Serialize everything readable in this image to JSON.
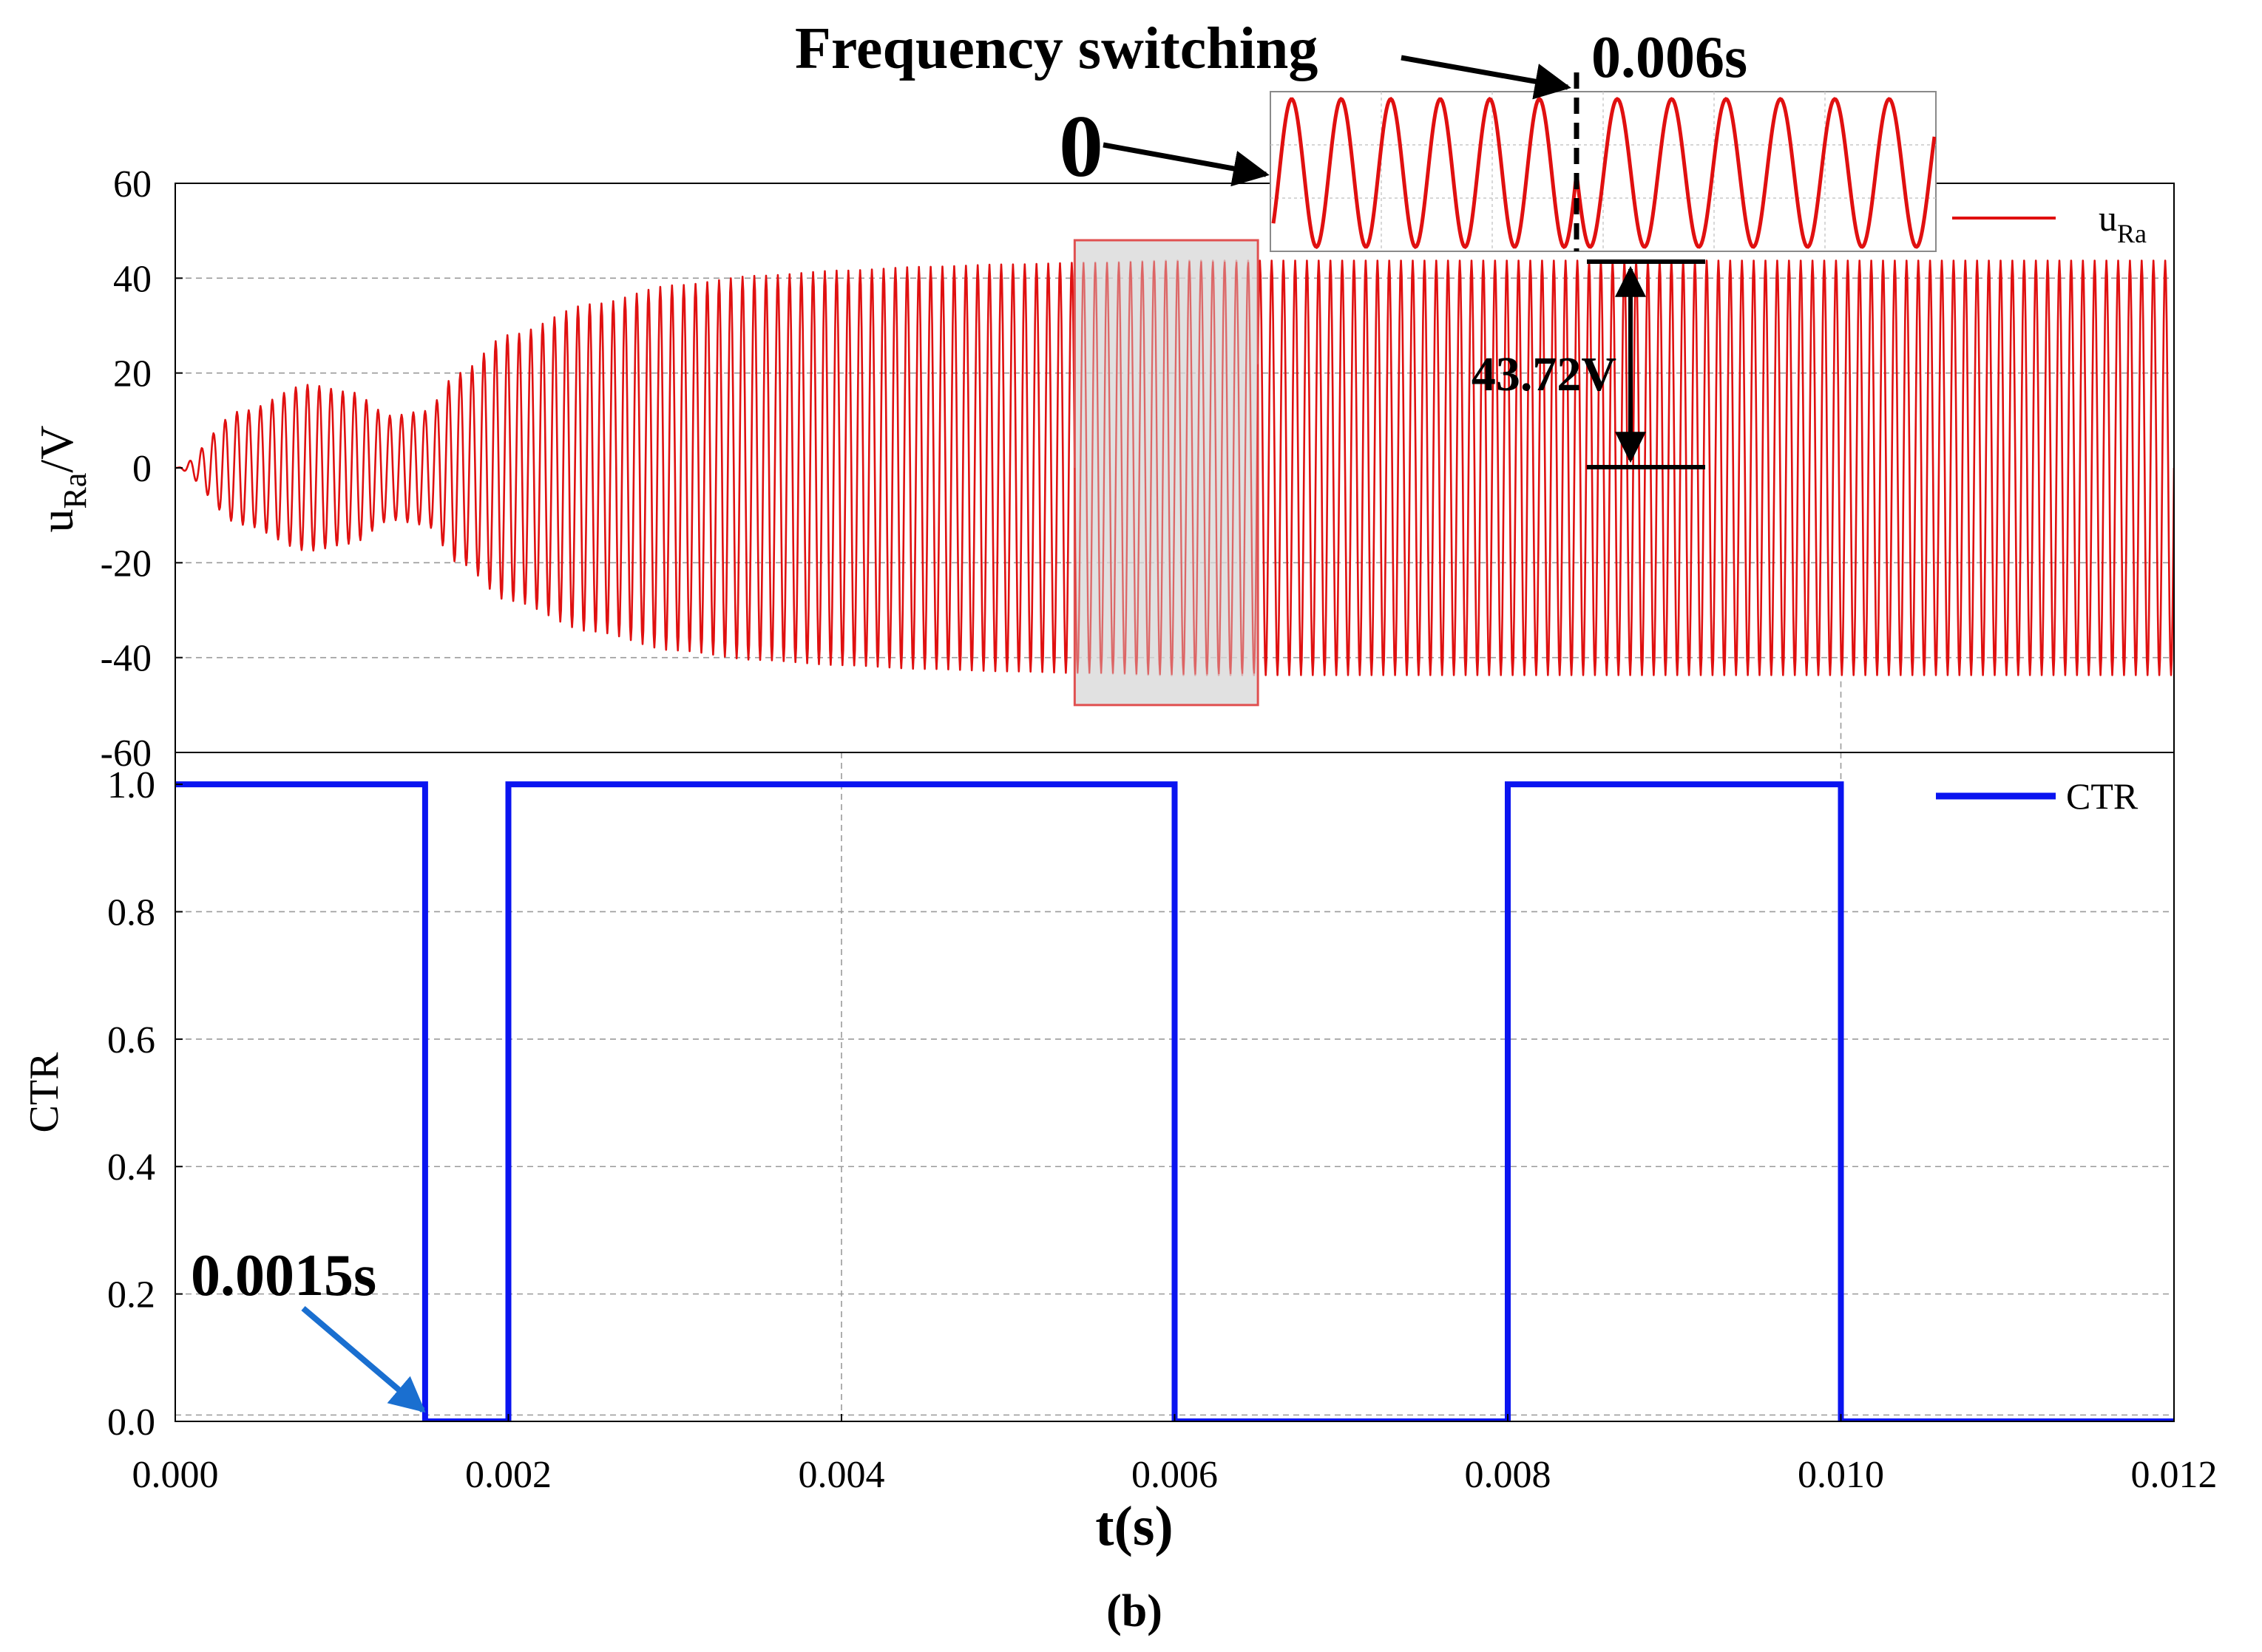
{
  "figure_label": "(b)",
  "colors": {
    "signal": "#e01010",
    "ctr": "#0a14f0",
    "annot": "#000000",
    "arrow_blue": "#1a6fd0",
    "grid": "#9a9a9a",
    "highlight_fill": "#d9d9d9",
    "highlight_stroke": "#e05050"
  },
  "chart_data": [
    {
      "id": "top",
      "type": "line",
      "ylabel_main": "u",
      "ylabel_sub": "Ra",
      "ylabel_unit": "/V",
      "xlim": [
        0,
        0.012
      ],
      "ylim": [
        -60,
        60
      ],
      "yticks": [
        "60",
        "40",
        "20",
        "0",
        "-20",
        "-40",
        "-60"
      ],
      "ytick_values": [
        60,
        40,
        20,
        0,
        -20,
        -40,
        -60
      ],
      "grid_y": [
        40,
        20,
        -20,
        -40
      ],
      "legend_main": "u",
      "legend_sub": "Ra",
      "series": [
        {
          "name": "uRa",
          "kind": "oscillation",
          "envelope_t": [
            0,
            0.0004,
            0.0008,
            0.00105,
            0.0013,
            0.0015,
            0.0017,
            0.002,
            0.0025,
            0.003,
            0.0035,
            0.004,
            0.0045,
            0.005,
            0.0055,
            0.006,
            0.012
          ],
          "envelope_a": [
            0,
            12,
            17.5,
            16,
            11,
            12,
            20,
            28,
            34.5,
            38.5,
            40.5,
            41.6,
            42.4,
            42.9,
            43.3,
            43.72,
            43.72
          ],
          "cycles": 170
        }
      ],
      "highlight_window": {
        "t0": 0.0054,
        "t1": 0.0065,
        "y0": 48,
        "y1": -50
      },
      "inset": {
        "cycles_before": 6,
        "cycles_after": 6.5,
        "switch_label": "Frequency switching",
        "switch_time_label": "0.006s",
        "zero_label": "0"
      },
      "amplitude_label": "43.72V",
      "amplitude_value": 43.72
    },
    {
      "id": "bottom",
      "type": "line",
      "ylabel": "CTR",
      "xlabel": "t(s)",
      "xlim": [
        0,
        0.012
      ],
      "ylim": [
        0,
        1.05
      ],
      "yticks": [
        "1.0",
        "0.8",
        "0.6",
        "0.4",
        "0.2",
        "0.0"
      ],
      "ytick_values": [
        1.0,
        0.8,
        0.6,
        0.4,
        0.2,
        0.0
      ],
      "grid_y": [
        0.8,
        0.6,
        0.4,
        0.2,
        0.01
      ],
      "grid_x": [
        0.004,
        0.01
      ],
      "xticks": [
        "0.000",
        "0.002",
        "0.004",
        "0.006",
        "0.008",
        "0.010",
        "0.012"
      ],
      "xtick_values": [
        0,
        0.002,
        0.004,
        0.006,
        0.008,
        0.01,
        0.012
      ],
      "legend": "CTR",
      "series": [
        {
          "name": "CTR",
          "x": [
            0,
            0.0015,
            0.0015,
            0.002,
            0.002,
            0.006,
            0.006,
            0.008,
            0.008,
            0.01,
            0.01,
            0.012
          ],
          "y": [
            1,
            1,
            0,
            0,
            1,
            1,
            0,
            0,
            1,
            1,
            0,
            0
          ]
        }
      ],
      "annotation_label": "0.0015s",
      "annotation_t": 0.0015
    }
  ]
}
